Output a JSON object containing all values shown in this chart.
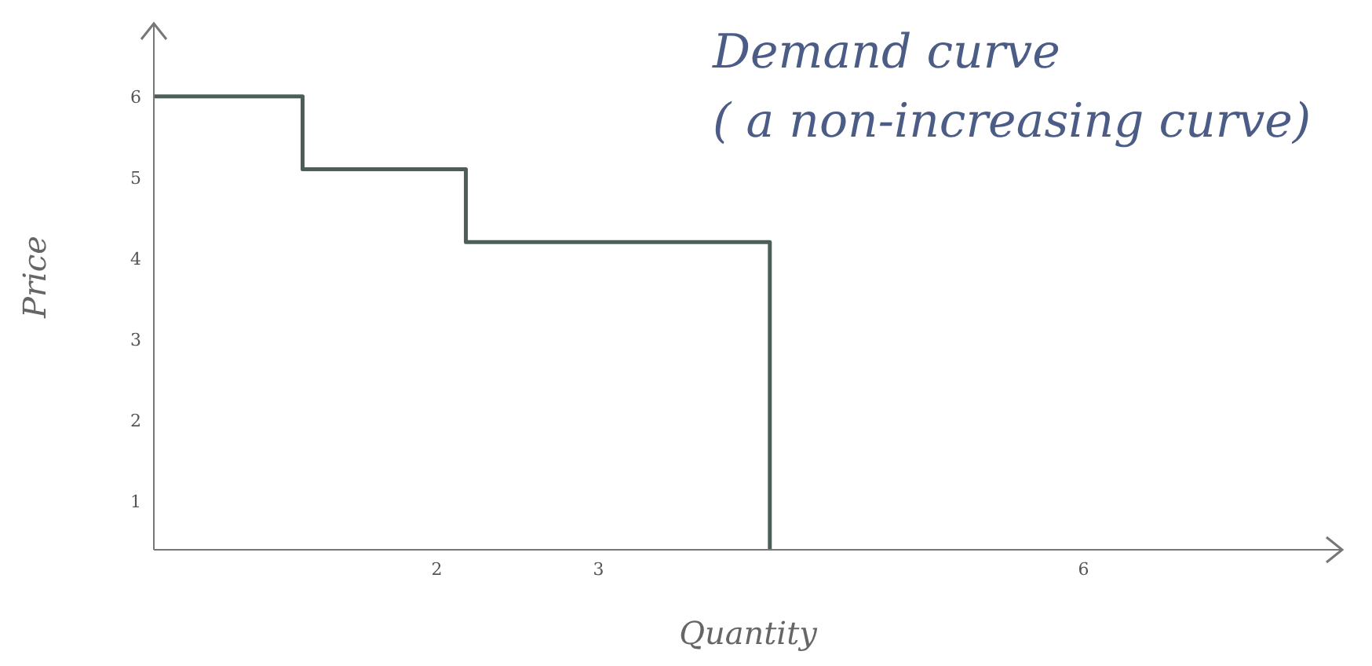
{
  "chart_data": {
    "type": "step",
    "title": "Demand curve",
    "subtitle": "( a non-increasing curve)",
    "xlabel": "Quantity",
    "ylabel": "Price",
    "x": [
      0.25,
      1.17,
      2.18,
      4.06
    ],
    "series": [
      {
        "color": "#4d5e58",
        "values": [
          6,
          5.1,
          4.2,
          0.4
        ]
      }
    ],
    "xlim": [
      0.25,
      7.6
    ],
    "xticks": [
      2,
      3,
      6
    ],
    "ylim": [
      0.4,
      6.9
    ],
    "yticks": [
      1,
      2,
      3,
      4,
      5,
      6
    ],
    "marker": "none",
    "line_style": "solid"
  }
}
